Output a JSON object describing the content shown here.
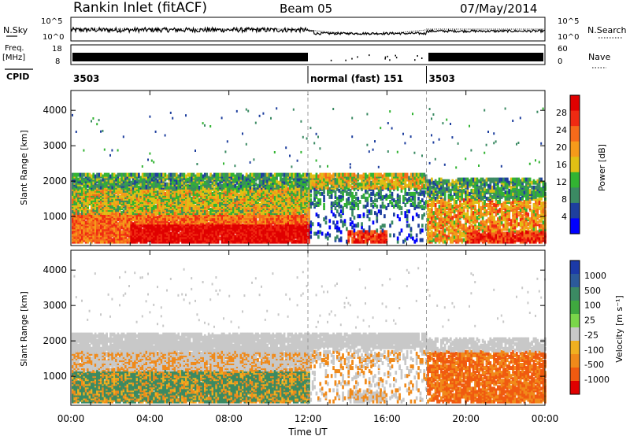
{
  "header": {
    "title": "Rankin Inlet (fitACF)",
    "beam": "Beam 05",
    "date": "07/May/2014"
  },
  "top_panels": {
    "nsky_label": "N.Sky",
    "nsearch_label": "N.Search",
    "freq_label_1": "Freq.",
    "freq_label_2": "[MHz]",
    "nave_label": "Nave",
    "cpid_label": "CPID",
    "nsky_ticks": [
      "10^5",
      "10^0"
    ],
    "nsearch_ticks": [
      "10^5",
      "10^0"
    ],
    "freq_ticks": [
      "18",
      "8"
    ],
    "nave_ticks": [
      "60",
      "0"
    ],
    "cpid_segments": [
      {
        "label": "3503",
        "start_h": 0,
        "end_h": 12
      },
      {
        "label": "normal (fast)  151",
        "start_h": 12,
        "end_h": 18
      },
      {
        "label": "3503",
        "start_h": 18,
        "end_h": 24
      }
    ]
  },
  "chart_data": [
    {
      "type": "heatmap",
      "name": "power",
      "ylabel": "Slant Range [km]",
      "yticks": [
        "1000",
        "2000",
        "3000",
        "4000"
      ],
      "ylim": [
        180,
        4560
      ],
      "colorbar_label": "Power [dB]",
      "colorbar_ticks": [
        "4",
        "8",
        "12",
        "16",
        "20",
        "24",
        "28"
      ],
      "colors": [
        "#0000ff",
        "#1e3f9e",
        "#3b8a63",
        "#32b432",
        "#e0c014",
        "#f59a1a",
        "#f56a1a",
        "#f02a12",
        "#e00000"
      ]
    },
    {
      "type": "heatmap",
      "name": "velocity",
      "ylabel": "Slant Range [km]",
      "yticks": [
        "1000",
        "2000",
        "3000",
        "4000"
      ],
      "ylim": [
        180,
        4560
      ],
      "xlabel": "Time UT",
      "xticks": [
        "00:00",
        "04:00",
        "08:00",
        "12:00",
        "16:00",
        "20:00",
        "00:00"
      ],
      "xlim": [
        0,
        24
      ],
      "colorbar_label": "Velocity [m s⁻¹]",
      "colorbar_ticks": [
        "1000",
        "500",
        "100",
        "25",
        "-25",
        "-100",
        "-500",
        "-1000"
      ],
      "colors": [
        "#1c3aa8",
        "#2c5a9a",
        "#3b8a63",
        "#3fa83f",
        "#7ad64a",
        "#c8c8c8",
        "#f0b020",
        "#f08a1a",
        "#f05a10",
        "#e00000"
      ]
    }
  ]
}
